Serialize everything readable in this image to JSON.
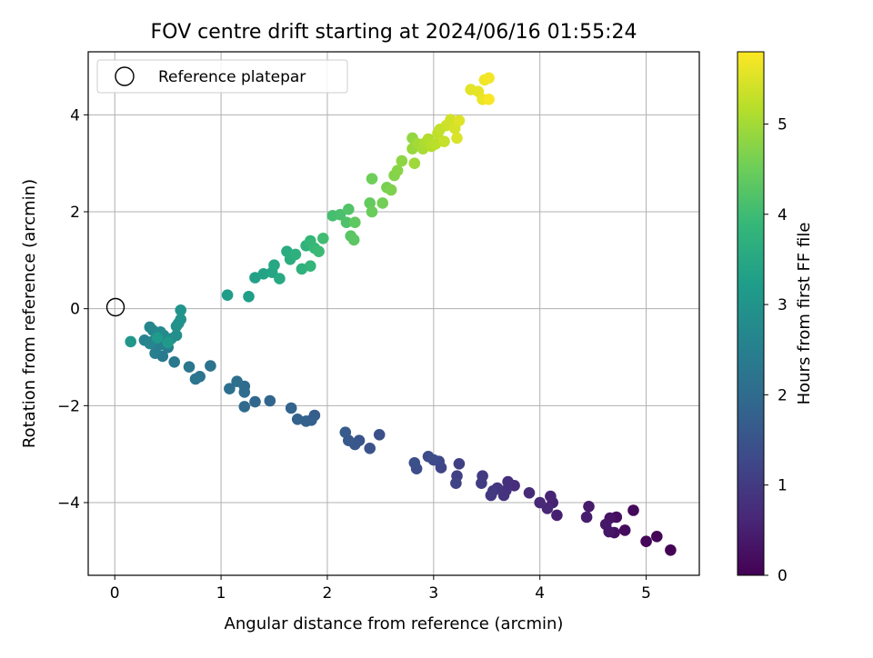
{
  "chart_data": {
    "type": "scatter",
    "title": "FOV centre drift starting at 2024/06/16 01:55:24",
    "xlabel": "Angular distance from reference (arcmin)",
    "ylabel": "Rotation from reference (arcmin)",
    "xlim": [
      -0.25,
      5.5
    ],
    "ylim": [
      -5.5,
      5.3
    ],
    "xticks": [
      "0",
      "1",
      "2",
      "3",
      "4",
      "5"
    ],
    "xtick_values": [
      0,
      1,
      2,
      3,
      4,
      5
    ],
    "yticks": [
      "−4",
      "−2",
      "0",
      "2",
      "4"
    ],
    "ytick_values": [
      -4,
      -2,
      0,
      2,
      4
    ],
    "grid": true,
    "legend": {
      "placement": "top-left",
      "entries": [
        "Reference platepar"
      ]
    },
    "reference_point": {
      "x": 0,
      "y": 0
    },
    "colorbar": {
      "label": "Hours from first FF file",
      "range": [
        0,
        5.8
      ],
      "ticks": [
        "0",
        "1",
        "2",
        "3",
        "4",
        "5"
      ],
      "tick_values": [
        0,
        1,
        2,
        3,
        4,
        5
      ],
      "colormap": [
        "#440154",
        "#482878",
        "#3e4989",
        "#31688e",
        "#26828e",
        "#1f9e89",
        "#35b779",
        "#6ece58",
        "#b5de2b",
        "#fde725"
      ]
    },
    "points": [
      {
        "x": 5.23,
        "y": -4.98,
        "h": 0.02
      },
      {
        "x": 5.1,
        "y": -4.7,
        "h": 0.06
      },
      {
        "x": 5.0,
        "y": -4.8,
        "h": 0.1
      },
      {
        "x": 4.88,
        "y": -4.16,
        "h": 0.14
      },
      {
        "x": 4.8,
        "y": -4.57,
        "h": 0.18
      },
      {
        "x": 4.72,
        "y": -4.3,
        "h": 0.22
      },
      {
        "x": 4.7,
        "y": -4.62,
        "h": 0.26
      },
      {
        "x": 4.66,
        "y": -4.32,
        "h": 0.3
      },
      {
        "x": 4.65,
        "y": -4.6,
        "h": 0.34
      },
      {
        "x": 4.62,
        "y": -4.45,
        "h": 0.38
      },
      {
        "x": 4.46,
        "y": -4.08,
        "h": 0.42
      },
      {
        "x": 4.44,
        "y": -4.3,
        "h": 0.46
      },
      {
        "x": 4.16,
        "y": -4.26,
        "h": 0.5
      },
      {
        "x": 4.12,
        "y": -4.0,
        "h": 0.54
      },
      {
        "x": 4.1,
        "y": -3.87,
        "h": 0.58
      },
      {
        "x": 4.07,
        "y": -4.12,
        "h": 0.62
      },
      {
        "x": 4.0,
        "y": -4.0,
        "h": 0.66
      },
      {
        "x": 3.9,
        "y": -3.8,
        "h": 0.7
      },
      {
        "x": 3.76,
        "y": -3.65,
        "h": 0.74
      },
      {
        "x": 3.7,
        "y": -3.57,
        "h": 0.78
      },
      {
        "x": 3.68,
        "y": -3.75,
        "h": 0.82
      },
      {
        "x": 3.66,
        "y": -3.85,
        "h": 0.86
      },
      {
        "x": 3.6,
        "y": -3.7,
        "h": 0.9
      },
      {
        "x": 3.56,
        "y": -3.76,
        "h": 0.94
      },
      {
        "x": 3.54,
        "y": -3.85,
        "h": 0.98
      },
      {
        "x": 3.46,
        "y": -3.45,
        "h": 1.02
      },
      {
        "x": 3.45,
        "y": -3.6,
        "h": 1.06
      },
      {
        "x": 3.24,
        "y": -3.2,
        "h": 1.1
      },
      {
        "x": 3.22,
        "y": -3.45,
        "h": 1.14
      },
      {
        "x": 3.21,
        "y": -3.6,
        "h": 1.18
      },
      {
        "x": 3.07,
        "y": -3.28,
        "h": 1.22
      },
      {
        "x": 3.05,
        "y": -3.15,
        "h": 1.26
      },
      {
        "x": 3.0,
        "y": -3.12,
        "h": 1.3
      },
      {
        "x": 2.95,
        "y": -3.05,
        "h": 1.34
      },
      {
        "x": 2.84,
        "y": -3.3,
        "h": 1.38
      },
      {
        "x": 2.82,
        "y": -3.18,
        "h": 1.42
      },
      {
        "x": 2.49,
        "y": -2.6,
        "h": 1.46
      },
      {
        "x": 2.4,
        "y": -2.88,
        "h": 1.5
      },
      {
        "x": 2.3,
        "y": -2.72,
        "h": 1.54
      },
      {
        "x": 2.26,
        "y": -2.8,
        "h": 1.58
      },
      {
        "x": 2.2,
        "y": -2.72,
        "h": 1.62
      },
      {
        "x": 2.17,
        "y": -2.55,
        "h": 1.66
      },
      {
        "x": 1.88,
        "y": -2.2,
        "h": 1.7
      },
      {
        "x": 1.85,
        "y": -2.3,
        "h": 1.74
      },
      {
        "x": 1.8,
        "y": -2.32,
        "h": 1.78
      },
      {
        "x": 1.72,
        "y": -2.28,
        "h": 1.82
      },
      {
        "x": 1.66,
        "y": -2.05,
        "h": 1.86
      },
      {
        "x": 1.46,
        "y": -1.9,
        "h": 1.9
      },
      {
        "x": 1.32,
        "y": -1.92,
        "h": 1.94
      },
      {
        "x": 1.22,
        "y": -2.02,
        "h": 1.98
      },
      {
        "x": 1.22,
        "y": -1.6,
        "h": 2.02
      },
      {
        "x": 1.22,
        "y": -1.72,
        "h": 2.06
      },
      {
        "x": 1.15,
        "y": -1.5,
        "h": 2.1
      },
      {
        "x": 1.08,
        "y": -1.65,
        "h": 2.14
      },
      {
        "x": 0.9,
        "y": -1.18,
        "h": 2.18
      },
      {
        "x": 0.8,
        "y": -1.4,
        "h": 2.22
      },
      {
        "x": 0.76,
        "y": -1.45,
        "h": 2.26
      },
      {
        "x": 0.7,
        "y": -1.2,
        "h": 2.3
      },
      {
        "x": 0.56,
        "y": -1.1,
        "h": 2.34
      },
      {
        "x": 0.45,
        "y": -0.98,
        "h": 2.38
      },
      {
        "x": 0.5,
        "y": -0.8,
        "h": 2.42
      },
      {
        "x": 0.38,
        "y": -0.92,
        "h": 2.46
      },
      {
        "x": 0.42,
        "y": -0.75,
        "h": 2.5
      },
      {
        "x": 0.35,
        "y": -0.68,
        "h": 2.54
      },
      {
        "x": 0.28,
        "y": -0.65,
        "h": 2.58
      },
      {
        "x": 0.33,
        "y": -0.72,
        "h": 2.62
      },
      {
        "x": 0.33,
        "y": -0.38,
        "h": 2.66
      },
      {
        "x": 0.36,
        "y": -0.45,
        "h": 2.7
      },
      {
        "x": 0.46,
        "y": -0.55,
        "h": 2.74
      },
      {
        "x": 0.43,
        "y": -0.48,
        "h": 2.78
      },
      {
        "x": 0.53,
        "y": -0.62,
        "h": 2.82
      },
      {
        "x": 0.58,
        "y": -0.55,
        "h": 2.86
      },
      {
        "x": 0.58,
        "y": -0.36,
        "h": 2.9
      },
      {
        "x": 0.6,
        "y": -0.3,
        "h": 2.94
      },
      {
        "x": 0.62,
        "y": -0.22,
        "h": 2.98
      },
      {
        "x": 0.62,
        "y": -0.03,
        "h": 3.02
      },
      {
        "x": 0.15,
        "y": -0.68,
        "h": 3.06
      },
      {
        "x": 0.5,
        "y": -0.7,
        "h": 3.1
      },
      {
        "x": 0.4,
        "y": -0.6,
        "h": 3.14
      },
      {
        "x": 1.06,
        "y": 0.28,
        "h": 3.2
      },
      {
        "x": 1.26,
        "y": 0.25,
        "h": 3.25
      },
      {
        "x": 1.32,
        "y": 0.64,
        "h": 3.3
      },
      {
        "x": 1.4,
        "y": 0.72,
        "h": 3.35
      },
      {
        "x": 1.48,
        "y": 0.75,
        "h": 3.4
      },
      {
        "x": 1.5,
        "y": 0.9,
        "h": 3.45
      },
      {
        "x": 1.55,
        "y": 0.62,
        "h": 3.5
      },
      {
        "x": 1.62,
        "y": 1.18,
        "h": 3.55
      },
      {
        "x": 1.65,
        "y": 1.02,
        "h": 3.6
      },
      {
        "x": 1.7,
        "y": 1.12,
        "h": 3.65
      },
      {
        "x": 1.76,
        "y": 0.82,
        "h": 3.7
      },
      {
        "x": 1.8,
        "y": 1.3,
        "h": 3.75
      },
      {
        "x": 1.84,
        "y": 0.88,
        "h": 3.8
      },
      {
        "x": 1.84,
        "y": 1.4,
        "h": 3.85
      },
      {
        "x": 1.88,
        "y": 1.25,
        "h": 3.9
      },
      {
        "x": 1.92,
        "y": 1.18,
        "h": 3.95
      },
      {
        "x": 1.96,
        "y": 1.45,
        "h": 4.0
      },
      {
        "x": 2.05,
        "y": 1.92,
        "h": 4.05
      },
      {
        "x": 2.12,
        "y": 1.94,
        "h": 4.1
      },
      {
        "x": 2.18,
        "y": 1.78,
        "h": 4.15
      },
      {
        "x": 2.2,
        "y": 2.05,
        "h": 4.2
      },
      {
        "x": 2.22,
        "y": 1.5,
        "h": 4.25
      },
      {
        "x": 2.25,
        "y": 1.42,
        "h": 4.3
      },
      {
        "x": 2.26,
        "y": 1.78,
        "h": 4.35
      },
      {
        "x": 2.4,
        "y": 2.18,
        "h": 4.4
      },
      {
        "x": 2.42,
        "y": 2.0,
        "h": 4.45
      },
      {
        "x": 2.42,
        "y": 2.68,
        "h": 4.5
      },
      {
        "x": 2.52,
        "y": 2.18,
        "h": 4.55
      },
      {
        "x": 2.56,
        "y": 2.5,
        "h": 4.6
      },
      {
        "x": 2.6,
        "y": 2.45,
        "h": 4.65
      },
      {
        "x": 2.63,
        "y": 2.75,
        "h": 4.7
      },
      {
        "x": 2.66,
        "y": 2.85,
        "h": 4.75
      },
      {
        "x": 2.7,
        "y": 3.05,
        "h": 4.8
      },
      {
        "x": 2.8,
        "y": 3.52,
        "h": 4.85
      },
      {
        "x": 2.8,
        "y": 3.3,
        "h": 4.9
      },
      {
        "x": 2.82,
        "y": 3.0,
        "h": 4.95
      },
      {
        "x": 2.85,
        "y": 3.4,
        "h": 5.0
      },
      {
        "x": 2.9,
        "y": 3.3,
        "h": 5.04
      },
      {
        "x": 2.92,
        "y": 3.42,
        "h": 5.08
      },
      {
        "x": 2.95,
        "y": 3.5,
        "h": 5.12
      },
      {
        "x": 2.98,
        "y": 3.35,
        "h": 5.16
      },
      {
        "x": 3.02,
        "y": 3.4,
        "h": 5.2
      },
      {
        "x": 3.04,
        "y": 3.62,
        "h": 5.24
      },
      {
        "x": 3.06,
        "y": 3.7,
        "h": 5.28
      },
      {
        "x": 3.1,
        "y": 3.45,
        "h": 5.32
      },
      {
        "x": 3.12,
        "y": 3.78,
        "h": 5.36
      },
      {
        "x": 3.16,
        "y": 3.9,
        "h": 5.4
      },
      {
        "x": 3.2,
        "y": 3.72,
        "h": 5.44
      },
      {
        "x": 3.22,
        "y": 3.52,
        "h": 5.48
      },
      {
        "x": 3.24,
        "y": 3.88,
        "h": 5.52
      },
      {
        "x": 3.35,
        "y": 4.52,
        "h": 5.56
      },
      {
        "x": 3.42,
        "y": 4.48,
        "h": 5.6
      },
      {
        "x": 3.46,
        "y": 4.32,
        "h": 5.64
      },
      {
        "x": 3.48,
        "y": 4.72,
        "h": 5.68
      },
      {
        "x": 3.52,
        "y": 4.76,
        "h": 5.72
      },
      {
        "x": 3.52,
        "y": 4.32,
        "h": 5.76
      }
    ]
  }
}
